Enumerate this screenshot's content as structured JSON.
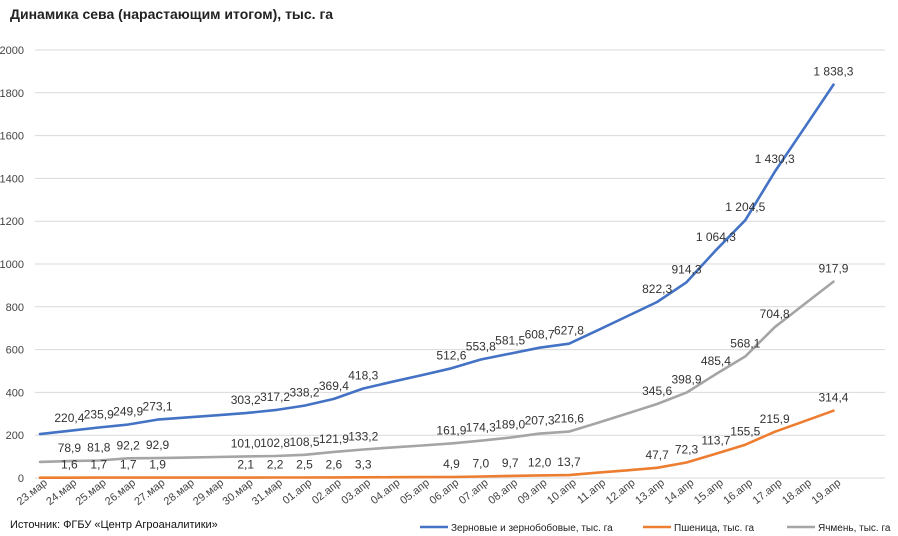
{
  "chart_data": {
    "type": "line",
    "title": "Динамика сева (нарастающим итогом), тыс. га",
    "xlabel": "",
    "ylabel": "",
    "ylim": [
      0,
      2000
    ],
    "yticks": [
      0,
      200,
      400,
      600,
      800,
      1000,
      1200,
      1400,
      1600,
      1800,
      2000
    ],
    "grid": true,
    "legend_position": "bottom-right",
    "categories": [
      "23.мар",
      "24.мар",
      "25.мар",
      "26.мар",
      "27.мар",
      "28.мар",
      "29.мар",
      "30.мар",
      "31.мар",
      "01.апр",
      "02.апр",
      "03.апр",
      "04.апр",
      "05.апр",
      "06.апр",
      "07.апр",
      "08.апр",
      "09.апр",
      "10.апр",
      "11.апр",
      "12.апр",
      "13.апр",
      "14.апр",
      "15.апр",
      "16.апр",
      "17.апр",
      "18.апр",
      "19.апр"
    ],
    "series": [
      {
        "name": "Зерновые и зернобобовые, тыс. га",
        "color": "#4472C4",
        "values": [
          205,
          220.4,
          235.9,
          249.9,
          273.1,
          283,
          293,
          303.2,
          317.2,
          338.2,
          369.4,
          418.3,
          450,
          481,
          512.6,
          553.8,
          581.5,
          608.7,
          627.8,
          692,
          757,
          822.3,
          914.3,
          1064.3,
          1204.5,
          1430.3,
          1634,
          1838.3
        ],
        "labels": [
          "",
          "220,4",
          "235,9",
          "249,9",
          "273,1",
          "",
          "",
          "303,2",
          "317,2",
          "338,2",
          "369,4",
          "418,3",
          "",
          "",
          "512,6",
          "553,8",
          "581,5",
          "608,7",
          "627,8",
          "",
          "",
          "822,3",
          "914,3",
          "1 064,3",
          "1 204,5",
          "1 430,3",
          "",
          "1 838,3"
        ]
      },
      {
        "name": "Пшеница, тыс. га",
        "color": "#ED7D31",
        "values": [
          1.5,
          1.6,
          1.7,
          1.7,
          1.9,
          2.0,
          2.05,
          2.1,
          2.2,
          2.5,
          2.6,
          3.3,
          3.8,
          4.3,
          4.9,
          7.0,
          9.7,
          12.0,
          13.7,
          25,
          36,
          47.7,
          72.3,
          113.7,
          155.5,
          215.9,
          265,
          314.4
        ],
        "labels": [
          "",
          "1,6",
          "1,7",
          "1,7",
          "1,9",
          "",
          "",
          "2,1",
          "2,2",
          "2,5",
          "2,6",
          "3,3",
          "",
          "",
          "4,9",
          "7,0",
          "9,7",
          "12,0",
          "13,7",
          "",
          "",
          "47,7",
          "72,3",
          "113,7",
          "155,5",
          "215,9",
          "",
          "314,4"
        ]
      },
      {
        "name": "Ячмень, тыс. га",
        "color": "#A5A5A5",
        "values": [
          75,
          78.9,
          81.8,
          92.2,
          92.9,
          95.5,
          98.2,
          101.0,
          102.8,
          108.5,
          121.9,
          133.2,
          143,
          152,
          161.9,
          174.3,
          189.0,
          207.3,
          216.6,
          259,
          302,
          345.6,
          398.9,
          485.4,
          568.1,
          704.8,
          811,
          917.9
        ],
        "labels": [
          "",
          "78,9",
          "81,8",
          "92,2",
          "92,9",
          "",
          "",
          "101,0",
          "102,8",
          "108,5",
          "121,9",
          "133,2",
          "",
          "",
          "161,9",
          "174,3",
          "189,0",
          "207,3",
          "216,6",
          "",
          "",
          "345,6",
          "398,9",
          "485,4",
          "568,1",
          "704,8",
          "",
          "917,9"
        ]
      }
    ]
  },
  "source_text": "Источник: ФГБУ «Центр Агроаналитики»"
}
